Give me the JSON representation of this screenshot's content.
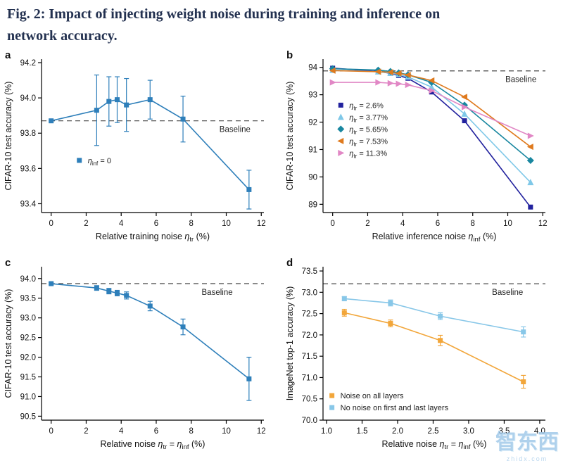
{
  "page": {
    "title_line1": "Fig. 2: Impact of injecting weight noise during training and inference on",
    "title_line2": "network accuracy."
  },
  "watermark": {
    "text": "智东西",
    "subtext": "zhidx.com"
  },
  "chart_data": [
    {
      "panel": "a",
      "type": "line",
      "ylabel": "CIFAR-10 test accuracy (%)",
      "xlabel": [
        {
          "text": "Relative training noise "
        },
        {
          "text": "η"
        },
        {
          "text": "tr",
          "sub": true
        },
        {
          "text": " (%)"
        }
      ],
      "xlim": [
        -0.55,
        12.15
      ],
      "ylim": [
        93.35,
        94.22
      ],
      "xticks": {
        "values": [
          0,
          2,
          4,
          6,
          8,
          10,
          12
        ],
        "labels": [
          "0",
          "2",
          "4",
          "6",
          "8",
          "10",
          "12"
        ]
      },
      "yticks": {
        "values": [
          93.4,
          93.6,
          93.8,
          94.0,
          94.2
        ],
        "labels": [
          "93.4",
          "93.6",
          "93.8",
          "94.0",
          "94.2"
        ]
      },
      "baseline": {
        "y": 93.87,
        "label": "Baseline",
        "fx": 0.8,
        "dy": 16
      },
      "legend": {
        "fx": 0.17,
        "fy": 0.66,
        "lh": 17,
        "entries": [
          {
            "marker": "square",
            "color": "#2e7fba",
            "label": [
              {
                "text": "η"
              },
              {
                "text": "inf",
                "sub": true
              },
              {
                "text": " = 0"
              }
            ]
          }
        ]
      },
      "series": [
        {
          "name": "eta_inf_0",
          "marker": "square",
          "color": "#2e7fba",
          "x": [
            0,
            2.6,
            3.3,
            3.77,
            4.3,
            5.65,
            7.53,
            11.3
          ],
          "y": [
            93.87,
            93.93,
            93.98,
            93.99,
            93.96,
            93.99,
            93.88,
            93.48
          ],
          "yerr": [
            0,
            0.2,
            0.14,
            0.13,
            0.15,
            0.11,
            0.13,
            0.11
          ]
        }
      ]
    },
    {
      "panel": "b",
      "type": "line",
      "ylabel": "CIFAR-10 test accuracy (%)",
      "xlabel": [
        {
          "text": "Relative inference noise "
        },
        {
          "text": "η"
        },
        {
          "text": "inf",
          "sub": true
        },
        {
          "text": " (%)"
        }
      ],
      "xlim": [
        -0.55,
        12.15
      ],
      "ylim": [
        88.7,
        94.3
      ],
      "xticks": {
        "values": [
          0,
          2,
          4,
          6,
          8,
          10,
          12
        ],
        "labels": [
          "0",
          "2",
          "4",
          "6",
          "8",
          "10",
          "12"
        ]
      },
      "yticks": {
        "values": [
          89,
          90,
          91,
          92,
          93,
          94
        ],
        "labels": [
          "89",
          "90",
          "91",
          "92",
          "93",
          "94"
        ]
      },
      "baseline": {
        "y": 93.87,
        "label": "Baseline",
        "fx": 0.82,
        "dy": 16
      },
      "legend": {
        "fx": 0.08,
        "fy": 0.3,
        "lh": 17,
        "entries": [
          {
            "marker": "square",
            "color": "#22229e",
            "label": [
              {
                "text": "η"
              },
              {
                "text": "tr",
                "sub": true
              },
              {
                "text": " = 2.6%"
              }
            ]
          },
          {
            "marker": "triangle-up",
            "color": "#7fc8e8",
            "label": [
              {
                "text": "η"
              },
              {
                "text": "tr",
                "sub": true
              },
              {
                "text": " = 3.77%"
              }
            ]
          },
          {
            "marker": "diamond",
            "color": "#1987a0",
            "label": [
              {
                "text": "η"
              },
              {
                "text": "tr",
                "sub": true
              },
              {
                "text": " = 5.65%"
              }
            ]
          },
          {
            "marker": "triangle-left",
            "color": "#df7a1e",
            "label": [
              {
                "text": "η"
              },
              {
                "text": "tr",
                "sub": true
              },
              {
                "text": " = 7.53%"
              }
            ]
          },
          {
            "marker": "triangle-right",
            "color": "#e187c5",
            "label": [
              {
                "text": "η"
              },
              {
                "text": "tr",
                "sub": true
              },
              {
                "text": " = 11.3%"
              }
            ]
          }
        ]
      },
      "series": [
        {
          "name": "eta_tr_2.6",
          "marker": "square",
          "color": "#22229e",
          "x": [
            0,
            2.6,
            3.3,
            3.77,
            4.3,
            5.65,
            7.53,
            11.3
          ],
          "y": [
            93.97,
            93.85,
            93.78,
            93.7,
            93.6,
            93.1,
            92.05,
            88.9
          ]
        },
        {
          "name": "eta_tr_3.77",
          "marker": "triangle-up",
          "color": "#7fc8e8",
          "x": [
            0,
            2.6,
            3.3,
            3.77,
            4.3,
            5.65,
            7.53,
            11.3
          ],
          "y": [
            93.9,
            93.84,
            93.79,
            93.74,
            93.65,
            93.28,
            92.3,
            89.8
          ]
        },
        {
          "name": "eta_tr_5.65",
          "marker": "diamond",
          "color": "#1987a0",
          "x": [
            0,
            2.6,
            3.3,
            3.77,
            4.3,
            5.65,
            7.53,
            11.3
          ],
          "y": [
            93.95,
            93.9,
            93.85,
            93.8,
            93.73,
            93.45,
            92.62,
            90.6
          ]
        },
        {
          "name": "eta_tr_7.53",
          "marker": "triangle-left",
          "color": "#df7a1e",
          "x": [
            0,
            2.6,
            3.3,
            3.77,
            4.3,
            5.65,
            7.53,
            11.3
          ],
          "y": [
            93.88,
            93.84,
            93.82,
            93.78,
            93.72,
            93.52,
            92.92,
            91.1
          ]
        },
        {
          "name": "eta_tr_11.3",
          "marker": "triangle-right",
          "color": "#e187c5",
          "x": [
            0,
            2.6,
            3.3,
            3.77,
            4.3,
            5.65,
            7.53,
            11.3
          ],
          "y": [
            93.45,
            93.45,
            93.42,
            93.4,
            93.36,
            93.15,
            92.55,
            91.5
          ]
        }
      ]
    },
    {
      "panel": "c",
      "type": "line",
      "ylabel": "CIFAR-10 test accuracy (%)",
      "xlabel": [
        {
          "text": "Relative noise "
        },
        {
          "text": "η"
        },
        {
          "text": "tr",
          "sub": true
        },
        {
          "text": " = "
        },
        {
          "text": "η"
        },
        {
          "text": "inf",
          "sub": true
        },
        {
          "text": " (%)"
        }
      ],
      "xlim": [
        -0.55,
        12.15
      ],
      "ylim": [
        90.4,
        94.3
      ],
      "xticks": {
        "values": [
          0,
          2,
          4,
          6,
          8,
          10,
          12
        ],
        "labels": [
          "0",
          "2",
          "4",
          "6",
          "8",
          "10",
          "12"
        ]
      },
      "yticks": {
        "values": [
          90.5,
          91.0,
          91.5,
          92.0,
          92.5,
          93.0,
          93.5,
          94.0
        ],
        "labels": [
          "90.5",
          "91.0",
          "91.5",
          "92.0",
          "92.5",
          "93.0",
          "93.5",
          "94.0"
        ]
      },
      "baseline": {
        "y": 93.87,
        "label": "Baseline",
        "fx": 0.72,
        "dy": 16
      },
      "series": [
        {
          "name": "eta_tr_eq_inf",
          "marker": "square",
          "color": "#2e7fba",
          "x": [
            0,
            2.6,
            3.3,
            3.77,
            4.3,
            5.65,
            7.53,
            11.3
          ],
          "y": [
            93.87,
            93.76,
            93.68,
            93.63,
            93.57,
            93.3,
            92.77,
            91.45
          ],
          "yerr": [
            0.03,
            0.06,
            0.07,
            0.07,
            0.09,
            0.12,
            0.2,
            0.55
          ]
        }
      ]
    },
    {
      "panel": "d",
      "type": "line",
      "ylabel": "ImageNet top-1 accuracy (%)",
      "xlabel": [
        {
          "text": "Relative noise "
        },
        {
          "text": "η"
        },
        {
          "text": "tr",
          "sub": true
        },
        {
          "text": " = "
        },
        {
          "text": "η"
        },
        {
          "text": "inf",
          "sub": true
        },
        {
          "text": " (%)"
        }
      ],
      "xlim": [
        0.95,
        4.08
      ],
      "ylim": [
        70.0,
        73.6
      ],
      "xticks": {
        "values": [
          1.0,
          1.5,
          2.0,
          2.5,
          3.0,
          3.5,
          4.0
        ],
        "labels": [
          "1.0",
          "1.5",
          "2.0",
          "2.5",
          "3.0",
          "3.5",
          "4.0"
        ]
      },
      "yticks": {
        "values": [
          70.0,
          70.5,
          71.0,
          71.5,
          72.0,
          72.5,
          73.0,
          73.5
        ],
        "labels": [
          "70.0",
          "70.5",
          "71.0",
          "71.5",
          "72.0",
          "72.5",
          "73.0",
          "73.5"
        ]
      },
      "baseline": {
        "y": 73.2,
        "label": "Baseline",
        "fx": 0.76,
        "dy": 16
      },
      "legend": {
        "fx": 0.04,
        "fy": 0.84,
        "lh": 17,
        "entries": [
          {
            "marker": "square",
            "color": "#f2a63a",
            "label": [
              {
                "text": "Noise on all layers"
              }
            ]
          },
          {
            "marker": "square",
            "color": "#88c7e8",
            "label": [
              {
                "text": "No noise on first and last layers"
              }
            ]
          }
        ]
      },
      "series": [
        {
          "name": "noise_all_layers",
          "marker": "square",
          "color": "#f2a63a",
          "x": [
            1.25,
            1.9,
            2.6,
            3.77
          ],
          "y": [
            72.52,
            72.27,
            71.87,
            70.9
          ],
          "yerr": [
            0.08,
            0.08,
            0.12,
            0.15
          ]
        },
        {
          "name": "no_noise_first_last",
          "marker": "square",
          "color": "#88c7e8",
          "x": [
            1.25,
            1.9,
            2.6,
            3.77
          ],
          "y": [
            72.85,
            72.75,
            72.44,
            72.07
          ],
          "yerr": [
            0.05,
            0.07,
            0.08,
            0.12
          ]
        }
      ]
    }
  ]
}
